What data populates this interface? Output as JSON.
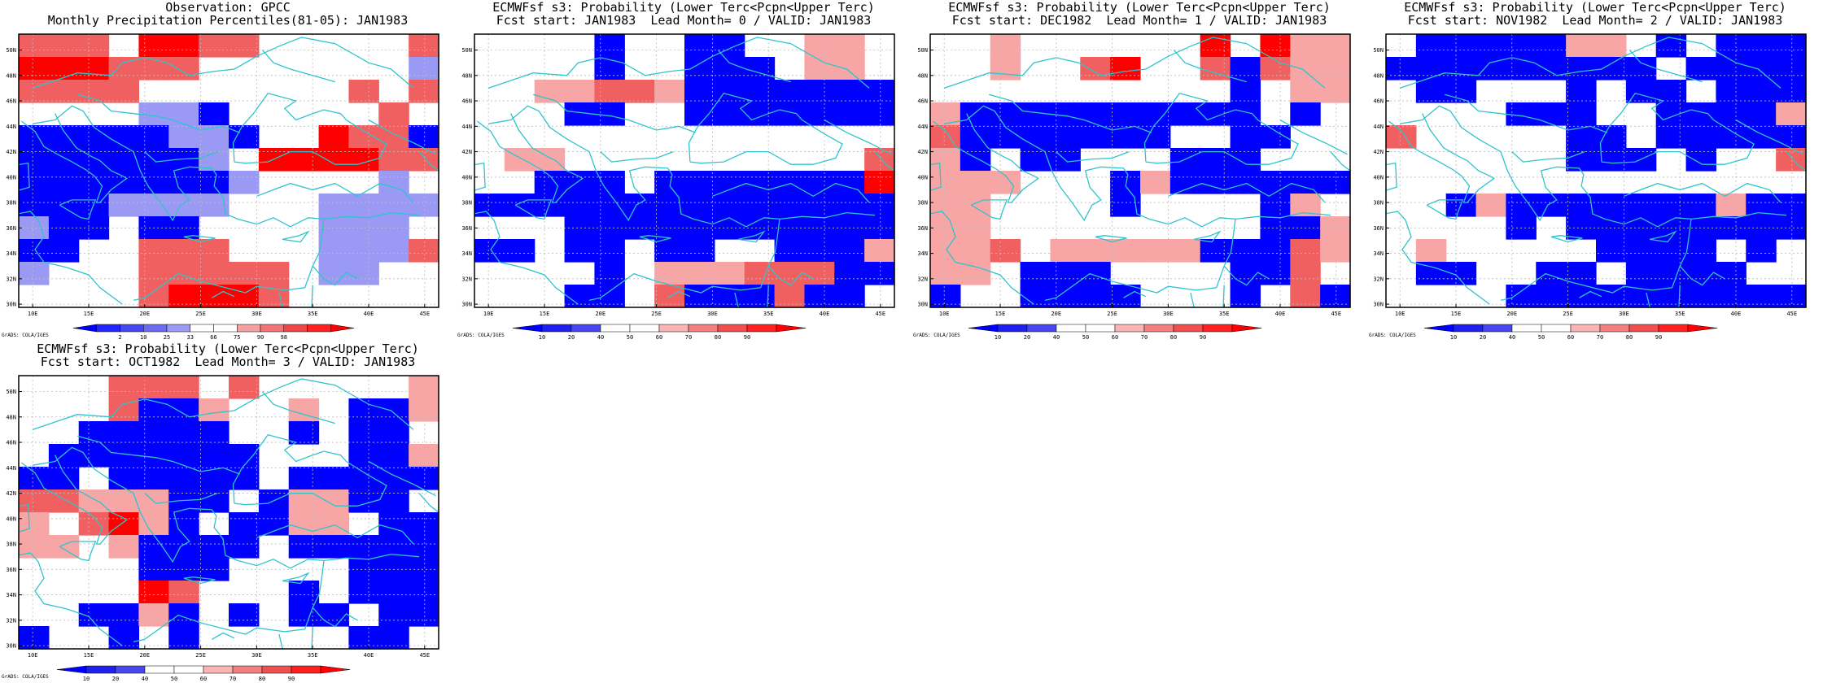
{
  "palette": {
    "ocean_line": "#2fc4cc",
    "frame": "#000000",
    "grid": "#bdbdbd",
    "obs_colors": [
      "#0000ff",
      "#2424ff",
      "#4848f0",
      "#6c6cf0",
      "#9a9af4",
      "#ffffff",
      "#ffffff",
      "#f4a0a0",
      "#f27474",
      "#f04848",
      "#ff2020",
      "#ff0000"
    ],
    "fcst_colors": [
      "#0000ff",
      "#2020ee",
      "#4848ee",
      "#ffffff",
      "#ffffff",
      "#fbb4b4",
      "#f47f7f",
      "#f05050",
      "#ff2020",
      "#ff0000"
    ]
  },
  "axes": {
    "lat_labels": [
      "30N",
      "32N",
      "34N",
      "36N",
      "38N",
      "40N",
      "42N",
      "44N",
      "46N",
      "48N",
      "50N"
    ],
    "lon_labels": [
      "10E",
      "15E",
      "20E",
      "25E",
      "30E",
      "35E",
      "40E",
      "45E"
    ]
  },
  "panels": [
    {
      "id": "obs",
      "title_line1": "Observation: GPCC",
      "title_line2": "Monthly Precipitation Percentiles(81-05): JAN1983",
      "colorbar_labels": [
        "2",
        "10",
        "25",
        "33",
        "66",
        "75",
        "90",
        "98"
      ],
      "footer": "GrADS: COLA/IGES",
      "grid": [
        "rrr0RRrr00000r",
        "RRRrrr0000000b",
        "rrrr0000000r0r",
        "0000bbB00000r0",
        "BBBBBbbB00RrrB",
        "BBBBBBb0RRRRrr",
        "BBBBBBBb0000b0",
        "BBBbbbb000bbbb",
        "bBB0BB0000bbb0",
        "BB00rrr000bbbr",
        "b000rrrrr0bb00",
        "0000rRRRr00000"
      ]
    },
    {
      "id": "lead0",
      "title_line1": "ECMWFsf s3: Probability (Lower Terc<Pcpn<Upper Terc)",
      "title_line2": "Fcst start: JAN1983  Lead Month= 0 / VALID: JAN1983",
      "colorbar_labels": [
        "10",
        "20",
        "40",
        "50",
        "60",
        "70",
        "80",
        "90"
      ],
      "footer": "GrADS: COLA/IGES",
      "grid": [
        "0000B00BB00pp0",
        "0000B00BBB0pp0",
        "00pprrpBBBBBBB",
        "000BB00BBBBBBB",
        "00000000000000",
        "0pp0000000000r",
        "00BBB0BBBBBBBR",
        "BBBBBBBBBBBBBB",
        "000BBBBBBBBBBB",
        "BB0BB0BB00BBBp",
        "0000B0ppprrrBB",
        "000BB0rBBBrBB0"
      ]
    },
    {
      "id": "lead1",
      "title_line1": "ECMWFsf s3: Probability (Lower Terc<Pcpn<Upper Terc)",
      "title_line2": "Fcst start: DEC1982  Lead Month= 1 / VALID: JAN1983",
      "colorbar_labels": [
        "10",
        "20",
        "40",
        "50",
        "60",
        "70",
        "80",
        "90"
      ],
      "footer": "GrADS: COLA/IGES",
      "grid": [
        "00p000000R0Rpp",
        "00p00rR00rBrpp",
        "0000000000B0pp",
        "pBBBBBBBBBB0B0",
        "rBBBBBBB00BB00",
        "pB0BB000BBB000",
        "ppp000BpBBBBBB",
        "pp0000B0000Bp0",
        "pp000000000BBp",
        "ppr0pppppBBBrp",
        "pp0BBB0000BBr0",
        "B00BBBB000B0rB"
      ]
    },
    {
      "id": "lead2",
      "title_line1": "ECMWFsf s3: Probability (Lower Terc<Pcpn<Upper Terc)",
      "title_line2": "Fcst start: NOV1982  Lead Month= 2 / VALID: JAN1983",
      "colorbar_labels": [
        "10",
        "20",
        "40",
        "50",
        "60",
        "70",
        "80",
        "90"
      ],
      "footer": "GrADS: COLA/IGES",
      "grid": [
        "0BBBBBpp0B0BBB",
        "BBBBBBBBB0BBBB",
        "0BB000B0BB0BBB",
        "0000BBB00BBBBp",
        "r00000BB0BBBBB",
        "000000BBB0B00r",
        "00000000000000",
        "00BpBBBBBBBpBB",
        "0000B0BBBBBBBB",
        "0p00000BBBB0B0",
        "0BB00BB0BBBB00",
        "0000BBBBBBBBBB"
      ]
    },
    {
      "id": "lead3",
      "title_line1": "ECMWFsf s3: Probability (Lower Terc<Pcpn<Upper Terc)",
      "title_line2": "Fcst start: OCT1982  Lead Month= 3 / VALID: JAN1983",
      "colorbar_labels": [
        "10",
        "20",
        "40",
        "50",
        "60",
        "70",
        "80",
        "90"
      ],
      "footer": "GrADS: COLA/IGES",
      "grid": [
        "000rrr0r00000p",
        "000rBBp00p0BBp",
        "00BBBBB00B0BB0",
        "0BBBBBBB000BBp",
        "BB0BBBBB0BBBBB",
        "rrpppBB0BppBB0",
        "p0rRpB0BBpp0BB",
        "pp0pBBBB0BBBBB",
        "0000BBB0000BBB",
        "0000Rr000B0BBB",
        "00BBpB0B0BB0BB",
        "B00B0B00000BB0"
      ]
    }
  ]
}
